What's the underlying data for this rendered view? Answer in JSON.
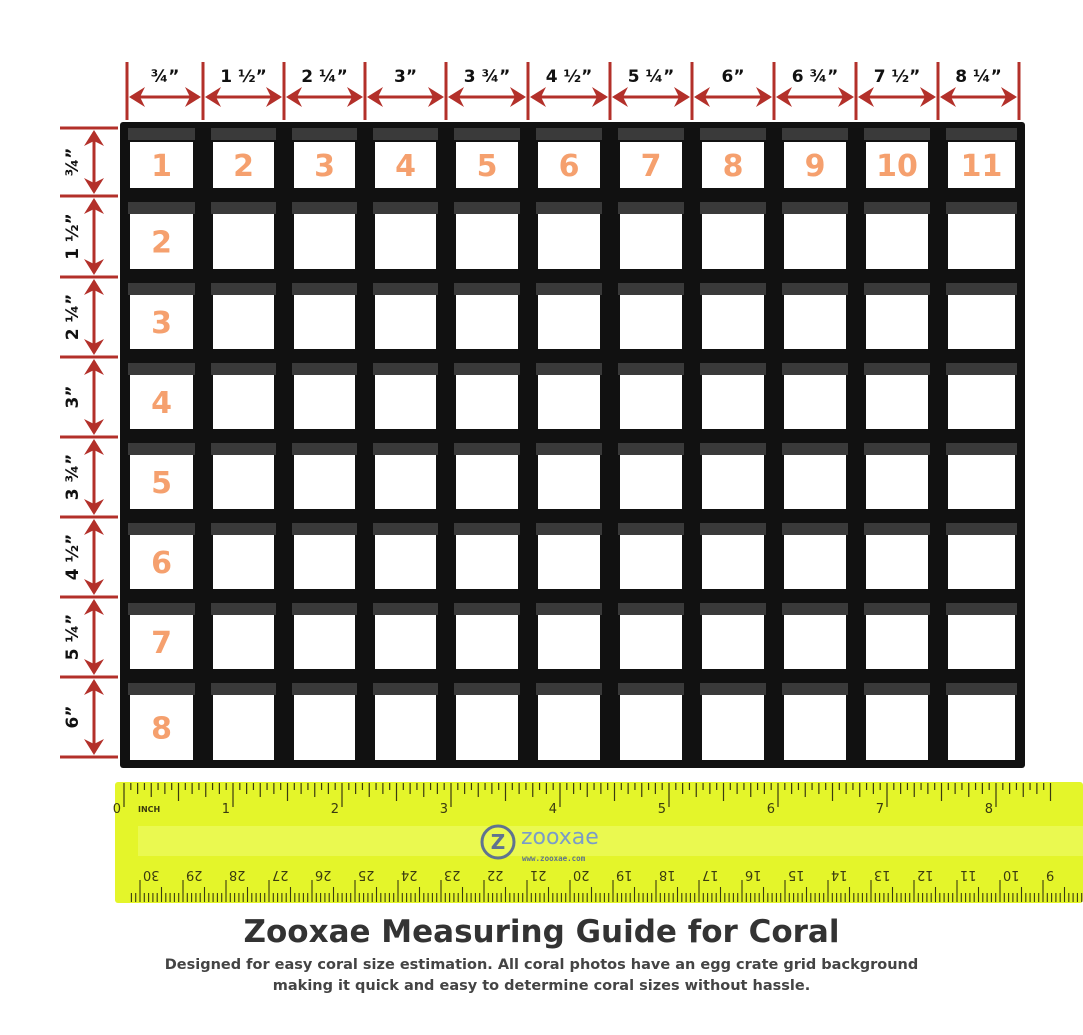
{
  "colors": {
    "dimension": "#b3302a",
    "grid": "#111111",
    "cell_number": "#f5a06e",
    "ruler": "#e4f52a",
    "ruler_marks": "#3a3a10",
    "logo": "#5f7390"
  },
  "column_labels": [
    "¾”",
    "1 ½”",
    "2 ¼”",
    "3”",
    "3 ¾”",
    "4 ½”",
    "5 ¼”",
    "6”",
    "6 ¾”",
    "7 ½”",
    "8 ¼”"
  ],
  "row_labels": [
    "¾”",
    "1 ½”",
    "2 ¼”",
    "3”",
    "3 ¾”",
    "4 ½”",
    "5 ¼”",
    "6”"
  ],
  "top_row_numbers": [
    "1",
    "2",
    "3",
    "4",
    "5",
    "6",
    "7",
    "8",
    "9",
    "10",
    "11"
  ],
  "left_column_numbers": [
    "2",
    "3",
    "4",
    "5",
    "6",
    "7",
    "8"
  ],
  "ruler": {
    "inch_unit": "INCH",
    "inch_labels": [
      "0",
      "1",
      "2",
      "3",
      "4",
      "5",
      "6",
      "7",
      "8"
    ],
    "cm_labels": [
      "30",
      "29",
      "28",
      "27",
      "26",
      "25",
      "24",
      "23",
      "22",
      "21",
      "20",
      "19",
      "18",
      "17",
      "16",
      "15",
      "14",
      "13",
      "12",
      "11",
      "10",
      "9"
    ],
    "logo_text": "zooxae",
    "logo_url_text": "www.zooxae.com",
    "logo_glyph": "Z"
  },
  "title": "Zooxae Measuring Guide for Coral",
  "subtitle_line1": "Designed for easy coral size estimation. All coral photos have an egg crate grid background",
  "subtitle_line2": "making it quick and easy to determine coral sizes without hassle."
}
